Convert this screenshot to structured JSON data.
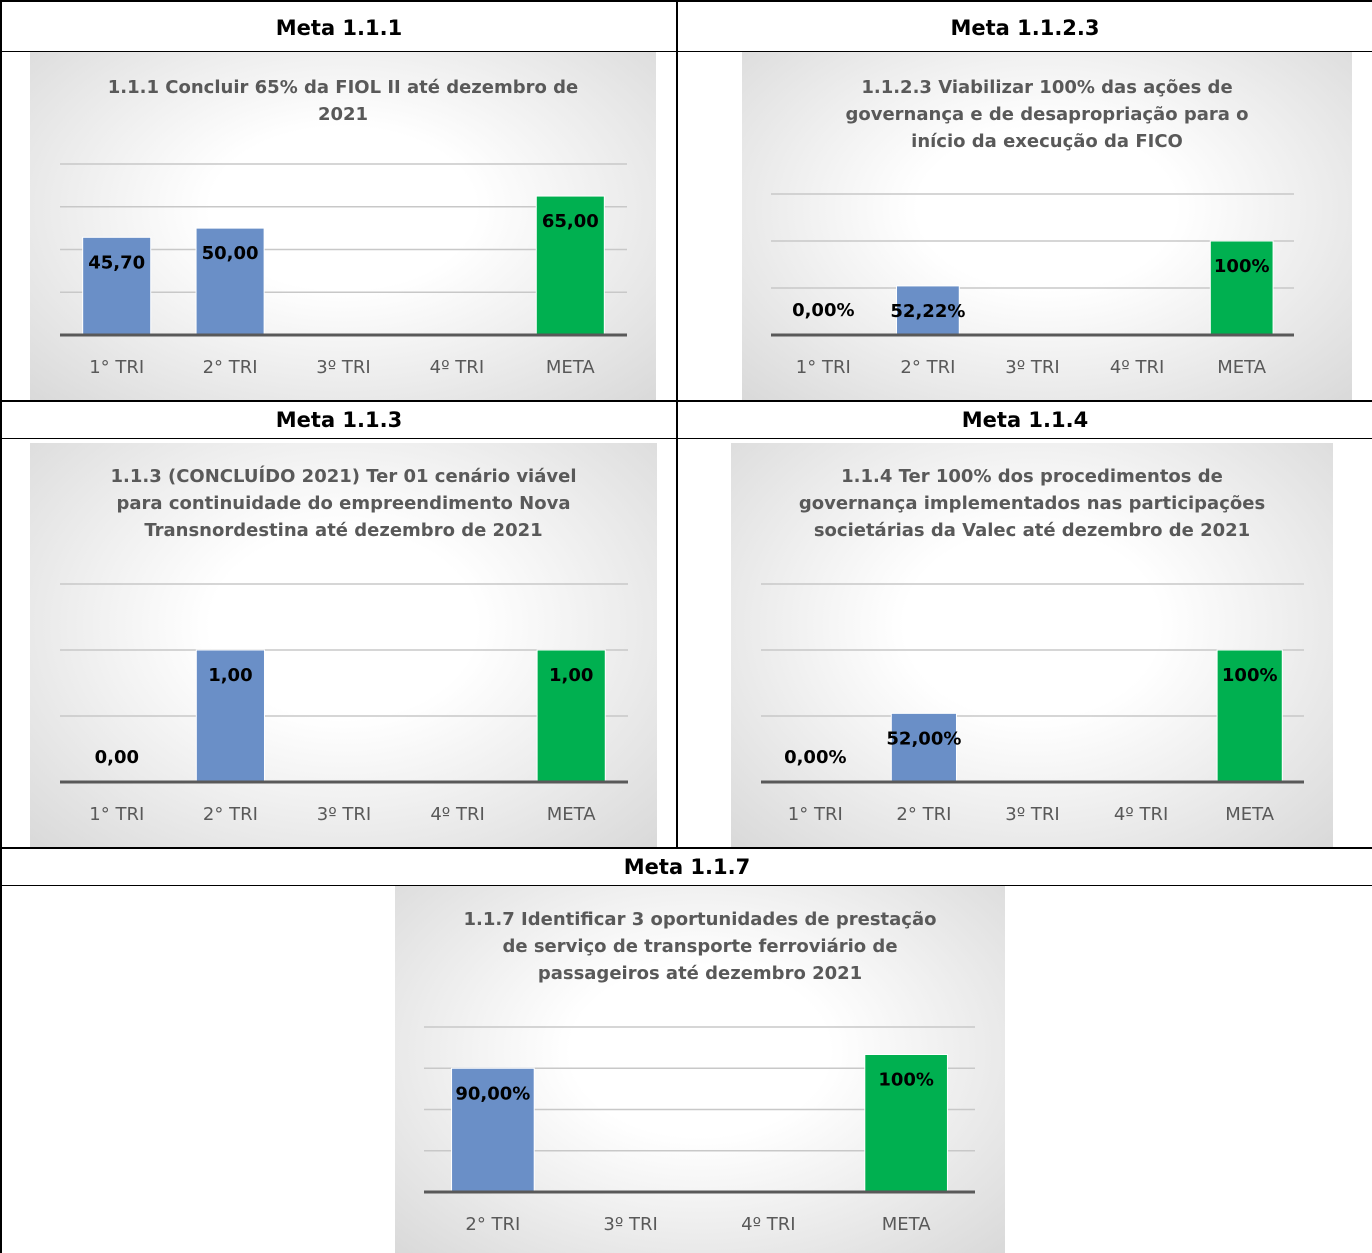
{
  "table": {
    "headers": [
      "Meta 1.1.1",
      "Meta 1.1.2.3",
      "Meta 1.1.3",
      "Meta 1.1.4",
      "Meta 1.1.7"
    ]
  },
  "chart_data": [
    {
      "type": "bar",
      "title": "1.1.1 Concluir 65% da FIOL II até dezembro de 2021",
      "categories": [
        "1° TRI",
        "2° TRI",
        "3º TRI",
        "4º TRI",
        "META"
      ],
      "values": [
        45.7,
        50,
        null,
        null,
        65
      ],
      "value_labels": [
        "45,70",
        "50,00",
        null,
        null,
        "65,00"
      ],
      "colors": [
        "#6a8fc7",
        "#6a8fc7",
        "#6a8fc7",
        "#6a8fc7",
        "#00b050"
      ],
      "ylim": [
        0,
        80
      ],
      "yticks": [
        0,
        20,
        40,
        60,
        80
      ],
      "grid": true
    },
    {
      "type": "bar",
      "title": "1.1.2.3  Viabilizar 100% das ações de governança e de desapropriação para o início da execução da FICO",
      "categories": [
        "1° TRI",
        "2° TRI",
        "3º TRI",
        "4º TRI",
        "META"
      ],
      "values": [
        0,
        52.22,
        null,
        null,
        100
      ],
      "value_labels": [
        "0,00%",
        "52,22%",
        null,
        null,
        "100%"
      ],
      "colors": [
        "#6a8fc7",
        "#6a8fc7",
        "#6a8fc7",
        "#6a8fc7",
        "#00b050"
      ],
      "ylim": [
        0,
        150
      ],
      "yticks": [
        0,
        50,
        100,
        150
      ],
      "grid": true
    },
    {
      "type": "bar",
      "title": "1.1.3 (CONCLUÍDO 2021) Ter 01 cenário viável para continuidade do empreendimento Nova Transnordestina até dezembro de 2021",
      "categories": [
        "1° TRI",
        "2° TRI",
        "3º TRI",
        "4º TRI",
        "META"
      ],
      "values": [
        0,
        1,
        null,
        null,
        1
      ],
      "value_labels": [
        "0,00",
        "1,00",
        null,
        null,
        "1,00"
      ],
      "colors": [
        "#6a8fc7",
        "#6a8fc7",
        "#6a8fc7",
        "#6a8fc7",
        "#00b050"
      ],
      "ylim": [
        0,
        1.5
      ],
      "yticks": [
        0,
        0.5,
        1,
        1.5
      ],
      "grid": true
    },
    {
      "type": "bar",
      "title": "1.1.4 Ter 100% dos procedimentos de governança implementados nas participações societárias da Valec até dezembro de 2021",
      "categories": [
        "1° TRI",
        "2° TRI",
        "3º TRI",
        "4º TRI",
        "META"
      ],
      "values": [
        0,
        52,
        null,
        null,
        100
      ],
      "value_labels": [
        "0,00%",
        "52,00%",
        null,
        null,
        "100%"
      ],
      "colors": [
        "#6a8fc7",
        "#6a8fc7",
        "#6a8fc7",
        "#6a8fc7",
        "#00b050"
      ],
      "ylim": [
        0,
        150
      ],
      "yticks": [
        0,
        50,
        100,
        150
      ],
      "grid": true
    },
    {
      "type": "bar",
      "title": "1.1.7 Identificar 3 oportunidades de prestação de serviço de transporte ferroviário de passageiros até dezembro 2021",
      "categories": [
        "2° TRI",
        "3º TRI",
        "4º TRI",
        "META"
      ],
      "values": [
        90,
        null,
        null,
        100
      ],
      "value_labels": [
        "90,00%",
        null,
        null,
        "100%"
      ],
      "colors": [
        "#6a8fc7",
        "#6a8fc7",
        "#6a8fc7",
        "#00b050"
      ],
      "ylim": [
        0,
        120
      ],
      "yticks": [
        0,
        30,
        60,
        90,
        120
      ],
      "grid": true
    }
  ]
}
